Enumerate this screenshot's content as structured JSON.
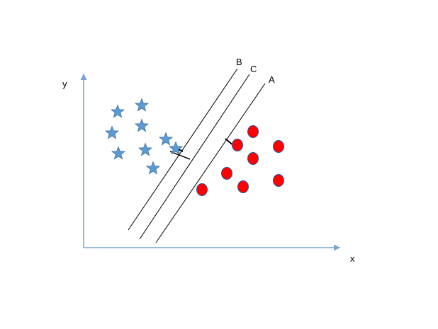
{
  "axes": {
    "x_label": "x",
    "y_label": "y",
    "color": "#7aa4d4"
  },
  "lines": [
    {
      "label": "B"
    },
    {
      "label": "C"
    },
    {
      "label": "A"
    }
  ],
  "stars": {
    "count": 9,
    "fill": "#5b9bd5",
    "stroke": "#41719c"
  },
  "circles": {
    "count": 8,
    "fill": "#ff0000",
    "stroke": "#2f5597"
  },
  "line_color": "#000000"
}
